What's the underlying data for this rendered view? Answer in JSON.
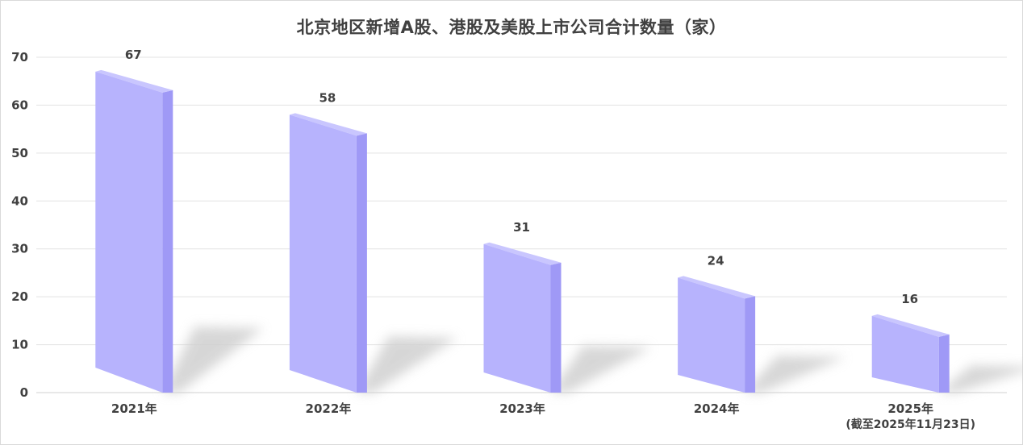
{
  "chart_data": {
    "type": "bar",
    "title": "北京地区新增A股、港股及美股上市公司合计数量（家）",
    "categories": [
      "2021年",
      "2022年",
      "2023年",
      "2024年",
      "2025年"
    ],
    "category_subtitles": [
      "",
      "",
      "",
      "",
      "(截至2025年11月23日)"
    ],
    "values": [
      67,
      58,
      31,
      24,
      16
    ],
    "data_labels": [
      "67",
      "58",
      "31",
      "24",
      "16"
    ],
    "ylim": [
      0,
      70
    ],
    "yticks": [
      "0",
      "10",
      "20",
      "30",
      "40",
      "50",
      "60",
      "70"
    ],
    "grid": true,
    "legend": "none",
    "colors": {
      "bar_front": "#b7b3fd",
      "bar_side": "#9f99f6",
      "bar_top": "#c9c6fe",
      "shadow": "#d0d0d0",
      "grid": "#e3e3e3"
    }
  }
}
